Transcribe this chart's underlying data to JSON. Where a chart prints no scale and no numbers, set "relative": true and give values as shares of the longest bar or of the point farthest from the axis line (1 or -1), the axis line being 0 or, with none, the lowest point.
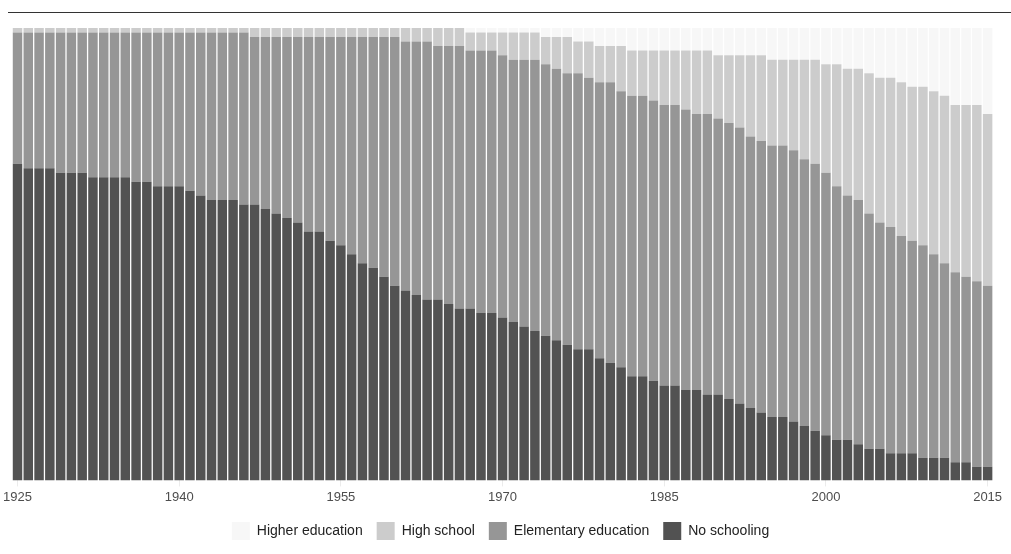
{
  "chart_data": {
    "type": "bar",
    "stacked": true,
    "relative": true,
    "legend": "bottom",
    "categories": [
      "1925",
      null,
      null,
      null,
      null,
      null,
      null,
      null,
      null,
      null,
      null,
      null,
      null,
      null,
      null,
      "1940",
      null,
      null,
      null,
      null,
      null,
      null,
      null,
      null,
      null,
      null,
      null,
      null,
      null,
      null,
      "1955",
      null,
      null,
      null,
      null,
      null,
      null,
      null,
      null,
      null,
      null,
      null,
      null,
      null,
      null,
      "1970",
      null,
      null,
      null,
      null,
      null,
      null,
      null,
      null,
      null,
      null,
      null,
      null,
      null,
      null,
      "1985",
      null,
      null,
      null,
      null,
      null,
      null,
      null,
      null,
      null,
      null,
      null,
      null,
      null,
      null,
      "2000",
      null,
      null,
      null,
      null,
      null,
      null,
      null,
      null,
      null,
      null,
      null,
      null,
      null,
      null,
      "2015"
    ],
    "series": [
      {
        "name": "No schooling",
        "color": "#525252",
        "values": [
          0.7,
          0.69,
          0.69,
          0.69,
          0.68,
          0.68,
          0.68,
          0.67,
          0.67,
          0.67,
          0.67,
          0.66,
          0.66,
          0.65,
          0.65,
          0.65,
          0.64,
          0.63,
          0.62,
          0.62,
          0.62,
          0.61,
          0.61,
          0.6,
          0.59,
          0.58,
          0.57,
          0.55,
          0.55,
          0.53,
          0.52,
          0.5,
          0.48,
          0.47,
          0.45,
          0.43,
          0.42,
          0.41,
          0.4,
          0.4,
          0.39,
          0.38,
          0.38,
          0.37,
          0.37,
          0.36,
          0.35,
          0.34,
          0.33,
          0.32,
          0.31,
          0.3,
          0.29,
          0.29,
          0.27,
          0.26,
          0.25,
          0.23,
          0.23,
          0.22,
          0.21,
          0.21,
          0.2,
          0.2,
          0.19,
          0.19,
          0.18,
          0.17,
          0.16,
          0.15,
          0.14,
          0.14,
          0.13,
          0.12,
          0.11,
          0.1,
          0.09,
          0.09,
          0.08,
          0.07,
          0.07,
          0.06,
          0.06,
          0.06,
          0.05,
          0.05,
          0.05,
          0.04,
          0.04,
          0.03,
          0.03
        ]
      },
      {
        "name": "Elementary education",
        "color": "#969696",
        "values": [
          0.29,
          0.3,
          0.3,
          0.3,
          0.31,
          0.31,
          0.31,
          0.32,
          0.32,
          0.32,
          0.32,
          0.33,
          0.33,
          0.34,
          0.34,
          0.34,
          0.35,
          0.36,
          0.37,
          0.37,
          0.37,
          0.38,
          0.37,
          0.38,
          0.39,
          0.4,
          0.41,
          0.43,
          0.43,
          0.45,
          0.46,
          0.48,
          0.5,
          0.51,
          0.53,
          0.55,
          0.55,
          0.56,
          0.57,
          0.56,
          0.57,
          0.58,
          0.57,
          0.58,
          0.58,
          0.58,
          0.58,
          0.59,
          0.6,
          0.6,
          0.6,
          0.6,
          0.61,
          0.6,
          0.61,
          0.62,
          0.61,
          0.62,
          0.62,
          0.62,
          0.62,
          0.62,
          0.62,
          0.61,
          0.62,
          0.61,
          0.61,
          0.61,
          0.6,
          0.6,
          0.6,
          0.6,
          0.6,
          0.59,
          0.59,
          0.58,
          0.56,
          0.54,
          0.54,
          0.52,
          0.5,
          0.5,
          0.48,
          0.47,
          0.47,
          0.45,
          0.43,
          0.42,
          0.41,
          0.41,
          0.4
        ]
      },
      {
        "name": "High school",
        "color": "#cccccc",
        "values": [
          0.01,
          0.01,
          0.01,
          0.01,
          0.01,
          0.01,
          0.01,
          0.01,
          0.01,
          0.01,
          0.01,
          0.01,
          0.01,
          0.01,
          0.01,
          0.01,
          0.01,
          0.01,
          0.01,
          0.01,
          0.01,
          0.01,
          0.02,
          0.02,
          0.02,
          0.02,
          0.02,
          0.02,
          0.02,
          0.02,
          0.02,
          0.02,
          0.02,
          0.02,
          0.02,
          0.02,
          0.03,
          0.03,
          0.03,
          0.04,
          0.04,
          0.04,
          0.04,
          0.04,
          0.04,
          0.05,
          0.06,
          0.06,
          0.06,
          0.06,
          0.07,
          0.08,
          0.07,
          0.08,
          0.08,
          0.08,
          0.1,
          0.1,
          0.1,
          0.11,
          0.12,
          0.12,
          0.13,
          0.14,
          0.14,
          0.14,
          0.15,
          0.16,
          0.18,
          0.19,
          0.19,
          0.19,
          0.2,
          0.22,
          0.23,
          0.24,
          0.27,
          0.28,
          0.29,
          0.31,
          0.32,
          0.33,
          0.34,
          0.34,
          0.35,
          0.36,
          0.37,
          0.37,
          0.38,
          0.39,
          0.38
        ]
      },
      {
        "name": "Higher education",
        "color": "#f7f7f7",
        "values": [
          0,
          0,
          0,
          0,
          0,
          0,
          0,
          0,
          0,
          0,
          0,
          0,
          0,
          0,
          0,
          0,
          0,
          0,
          0,
          0,
          0,
          0,
          0,
          0,
          0,
          0,
          0,
          0,
          0,
          0,
          0,
          0,
          0,
          0,
          0,
          0,
          0,
          0,
          0,
          0,
          0,
          0,
          0.01,
          0.01,
          0.01,
          0.01,
          0.01,
          0.01,
          0.01,
          0.02,
          0.02,
          0.02,
          0.03,
          0.03,
          0.04,
          0.04,
          0.04,
          0.05,
          0.05,
          0.05,
          0.05,
          0.05,
          0.05,
          0.05,
          0.05,
          0.06,
          0.06,
          0.06,
          0.06,
          0.06,
          0.07,
          0.07,
          0.07,
          0.07,
          0.07,
          0.08,
          0.08,
          0.09,
          0.09,
          0.1,
          0.11,
          0.11,
          0.12,
          0.13,
          0.13,
          0.14,
          0.15,
          0.17,
          0.17,
          0.17,
          0.19
        ]
      }
    ]
  }
}
